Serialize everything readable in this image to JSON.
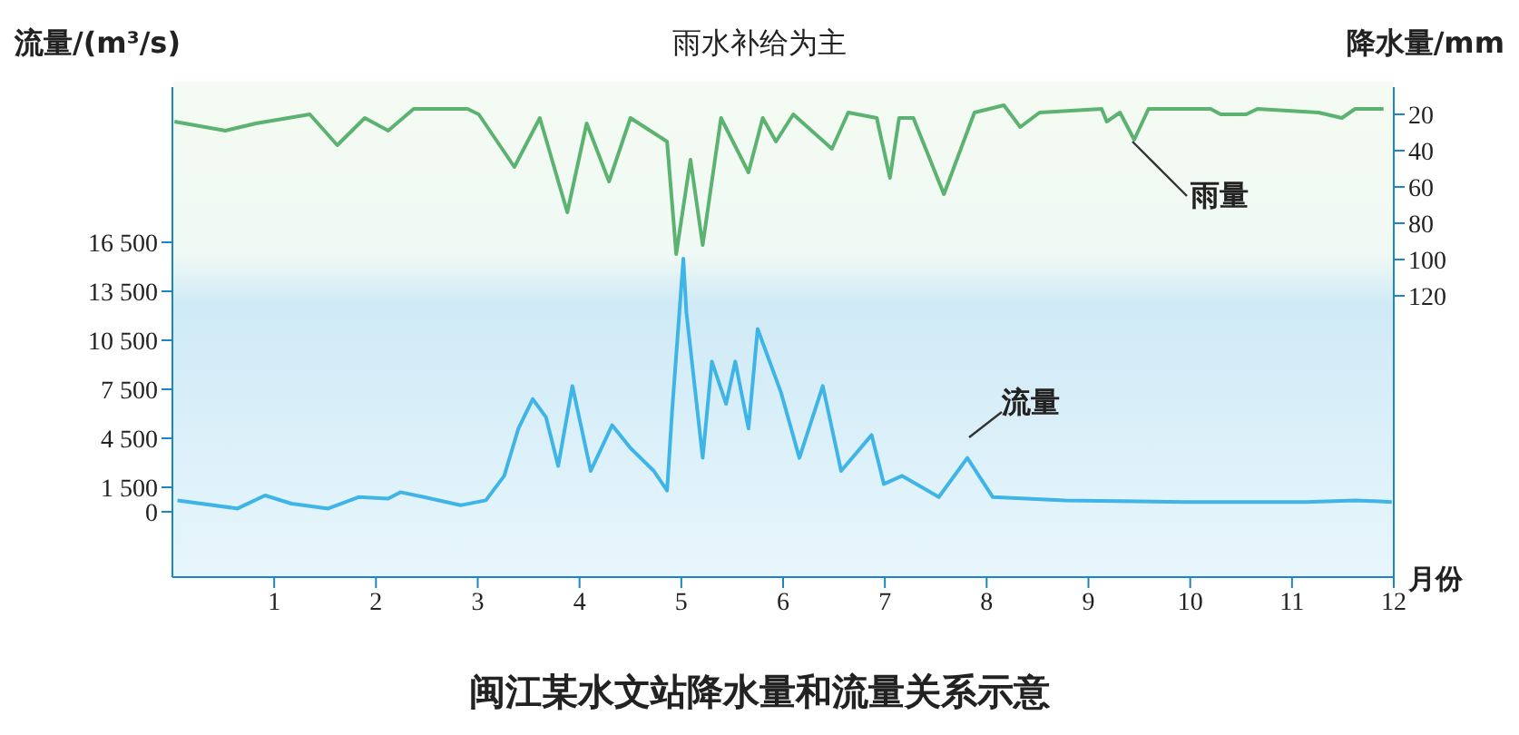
{
  "chart_data": {
    "type": "line",
    "title": "闽江某水文站降水量和流量关系示意",
    "ylabel": "流量/(m³/s)",
    "y2label": "降水量/mm",
    "xlabel": "月份",
    "annotations": [
      "雨水补给为主"
    ],
    "xlim": [
      0,
      12
    ],
    "xticks": [
      1,
      2,
      3,
      4,
      5,
      6,
      7,
      8,
      9,
      10,
      11,
      12
    ],
    "ylim": [
      -4000,
      26000
    ],
    "yticks": [
      {
        "value": 0,
        "label": "0"
      },
      {
        "value": 1500,
        "label": "1 500"
      },
      {
        "value": 4500,
        "label": "4 500"
      },
      {
        "value": 7500,
        "label": "7 500"
      },
      {
        "value": 10500,
        "label": "10 500"
      },
      {
        "value": 13500,
        "label": "13 500"
      },
      {
        "value": 16500,
        "label": "16 500"
      }
    ],
    "y2lim": [
      275,
      5
    ],
    "y2ticks": [
      20,
      40,
      60,
      80,
      100,
      120
    ],
    "marker": "none",
    "line_style": "solid",
    "series": [
      {
        "name": "雨量",
        "color": "#5cb270",
        "axis": "y2",
        "x": [
          0.02,
          0.52,
          0.82,
          1.35,
          1.62,
          1.89,
          2.12,
          2.37,
          2.9,
          3.01,
          3.36,
          3.61,
          3.88,
          4.07,
          4.29,
          4.5,
          4.86,
          4.95,
          5.09,
          5.21,
          5.39,
          5.66,
          5.8,
          5.93,
          6.1,
          6.48,
          6.64,
          6.92,
          7.05,
          7.14,
          7.28,
          7.58,
          7.88,
          8.17,
          8.33,
          8.52,
          9.13,
          9.18,
          9.31,
          9.45,
          9.59,
          10.2,
          10.3,
          10.55,
          10.66,
          11.26,
          11.49,
          11.62,
          11.9
        ],
        "values": [
          24,
          29,
          25,
          20,
          37,
          22,
          29,
          17,
          17,
          20,
          49,
          22,
          74,
          25,
          57,
          22,
          35,
          97,
          45,
          92,
          22,
          52,
          22,
          35,
          20,
          39,
          19,
          22,
          55,
          22,
          22,
          64,
          19,
          15,
          27,
          19,
          17,
          24,
          19,
          34,
          17,
          17,
          20,
          20,
          17,
          19,
          22,
          17,
          17
        ]
      },
      {
        "name": "流量",
        "color": "#3fb4e6",
        "x": [
          0.05,
          0.64,
          0.91,
          1.17,
          1.53,
          1.83,
          2.12,
          2.24,
          2.47,
          2.83,
          3.08,
          3.26,
          3.4,
          3.54,
          3.67,
          3.79,
          3.93,
          4.11,
          4.32,
          4.5,
          4.73,
          4.86,
          4.91,
          5.02,
          5.05,
          5.21,
          5.3,
          5.44,
          5.53,
          5.66,
          5.75,
          5.85,
          5.98,
          6.16,
          6.39,
          6.57,
          6.87,
          6.99,
          7.17,
          7.53,
          7.81,
          8.06,
          8.77,
          9.95,
          11.14,
          11.62,
          11.98
        ],
        "values": [
          700,
          200,
          1000,
          500,
          200,
          900,
          800,
          1200,
          900,
          400,
          700,
          2200,
          5100,
          6900,
          5800,
          2800,
          7700,
          2500,
          5300,
          3900,
          2500,
          1300,
          6200,
          15500,
          12200,
          3300,
          9200,
          6600,
          9200,
          5100,
          11200,
          9500,
          7300,
          3300,
          7700,
          2500,
          4700,
          1700,
          2200,
          900,
          3300,
          900,
          700,
          600,
          600,
          700,
          600
        ]
      }
    ]
  }
}
